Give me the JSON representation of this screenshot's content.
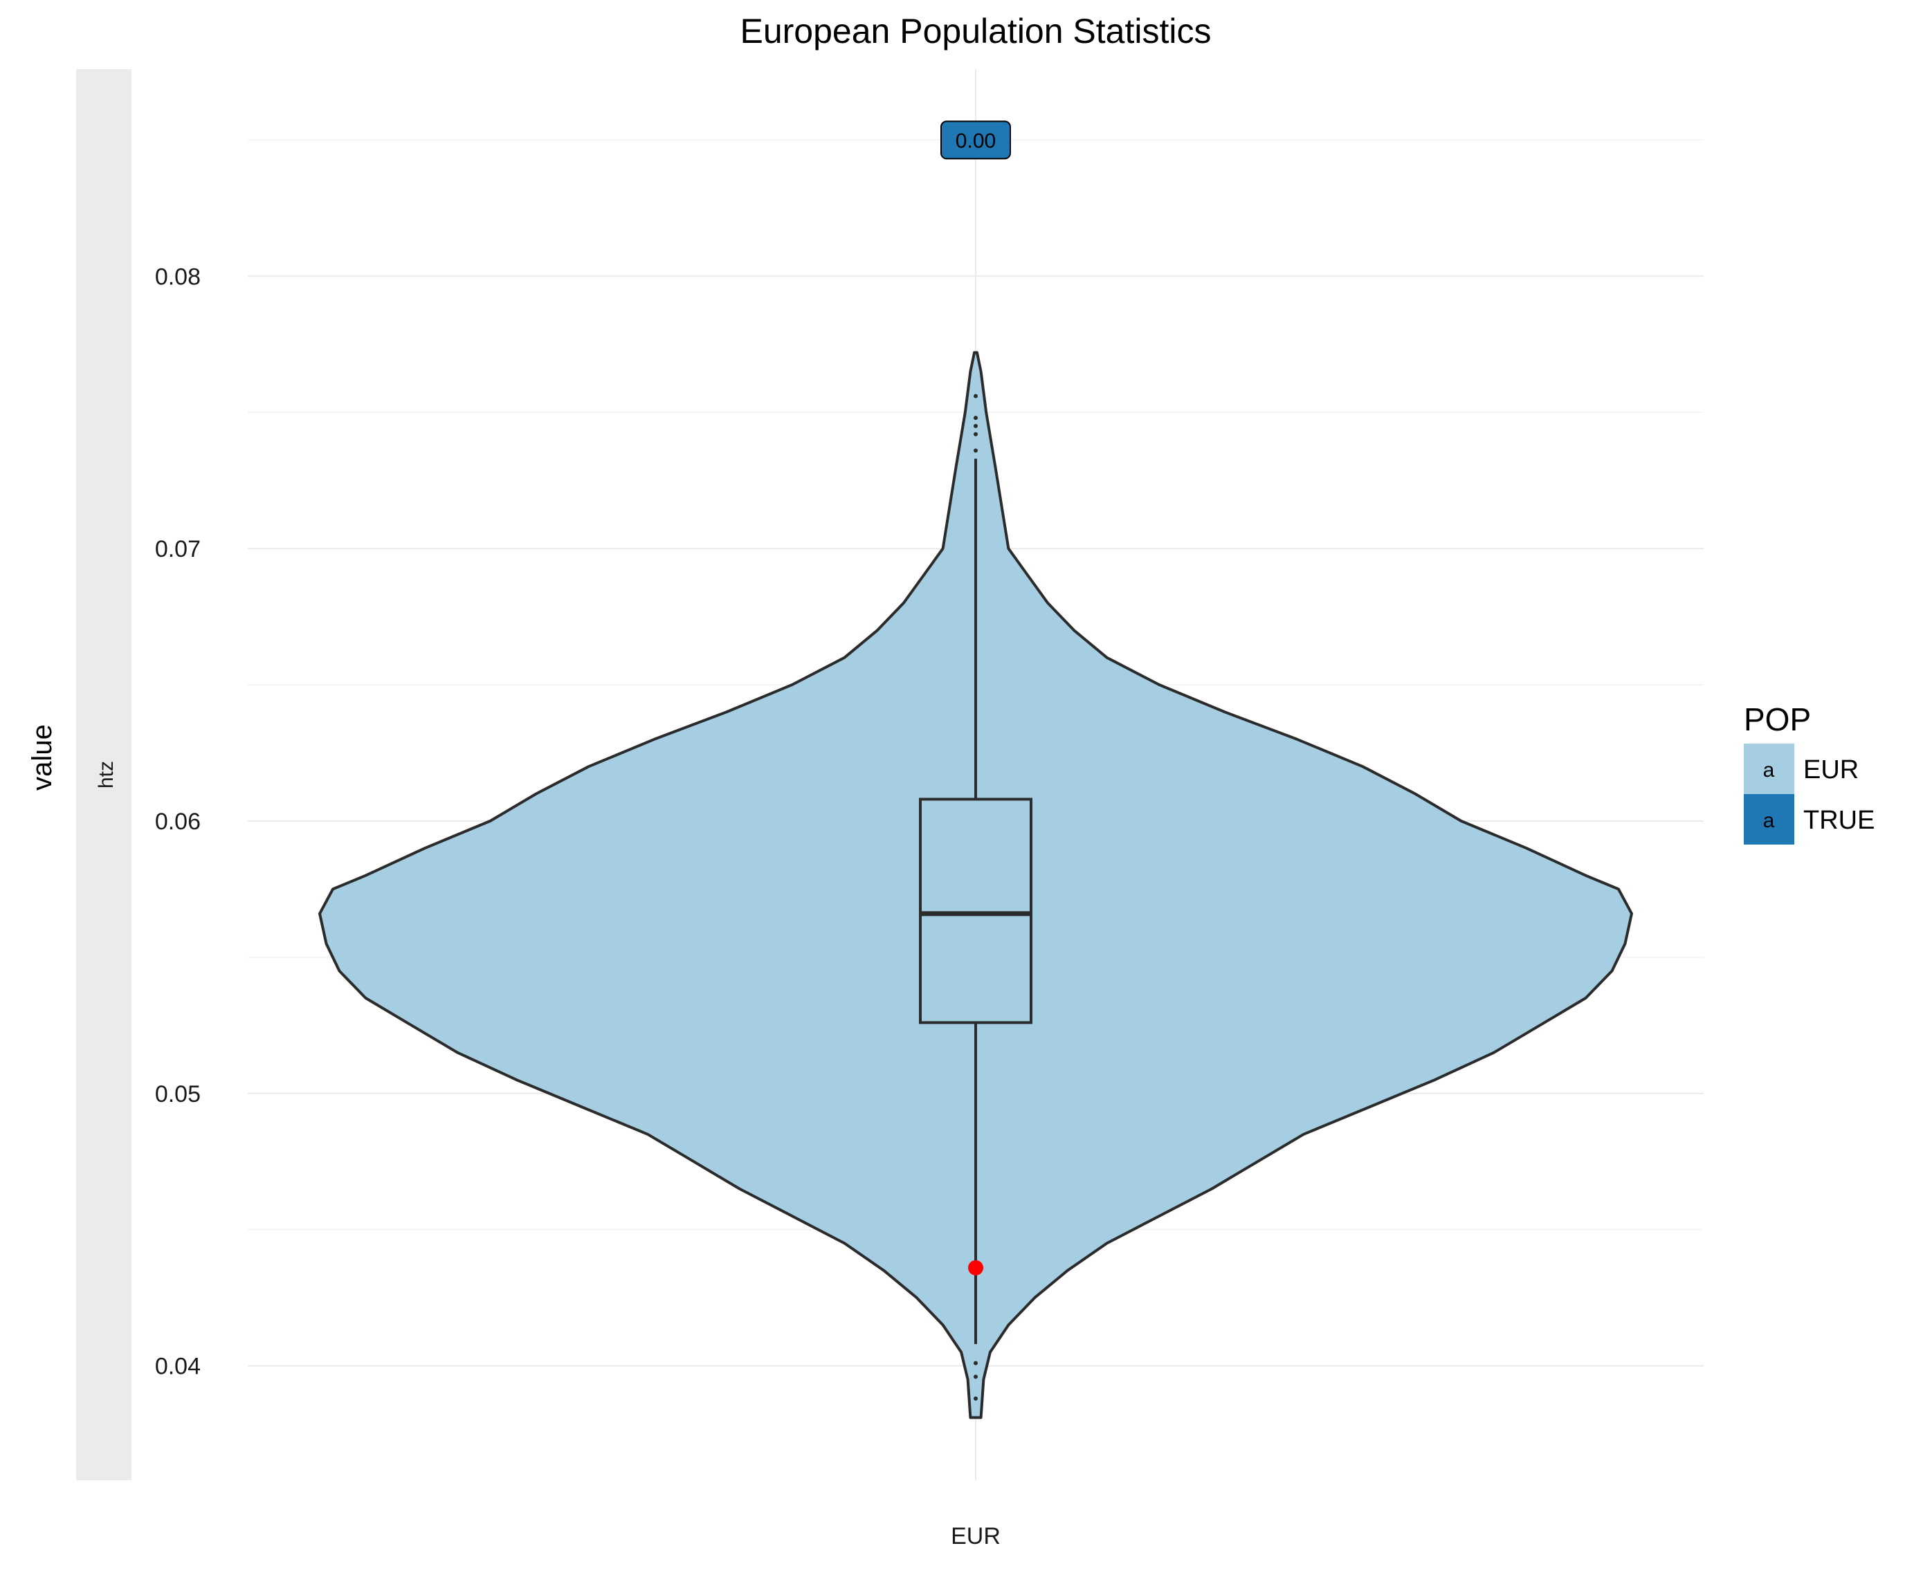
{
  "chart_data": {
    "type": "violin",
    "title": "European Population Statistics",
    "ylabel": "value",
    "facet_label": "htz",
    "categories": [
      "EUR"
    ],
    "ylim": [
      0.0358,
      0.0876
    ],
    "y_ticks": [
      0.04,
      0.05,
      0.06,
      0.07,
      0.08
    ],
    "y_tick_labels": [
      "0.04",
      "0.05",
      "0.06",
      "0.07",
      "0.08"
    ],
    "grid": true,
    "legend": {
      "title": "POP",
      "placement": "right",
      "key_glyph": "a",
      "entries": [
        {
          "label": "EUR",
          "color": "#a6cee3"
        },
        {
          "label": "TRUE",
          "color": "#1f78b4"
        }
      ]
    },
    "violin": {
      "category": "EUR",
      "fill": "#a6cee3",
      "outline": "#2b2b2b",
      "y_min": 0.0381,
      "y_max": 0.0772,
      "max_width_at": 0.0566,
      "profile": [
        [
          0.0381,
          0.008
        ],
        [
          0.0395,
          0.012
        ],
        [
          0.0405,
          0.022
        ],
        [
          0.0415,
          0.05
        ],
        [
          0.0425,
          0.09
        ],
        [
          0.0435,
          0.14
        ],
        [
          0.0445,
          0.2
        ],
        [
          0.0455,
          0.28
        ],
        [
          0.0465,
          0.36
        ],
        [
          0.0475,
          0.43
        ],
        [
          0.0485,
          0.5
        ],
        [
          0.0495,
          0.6
        ],
        [
          0.0505,
          0.7
        ],
        [
          0.0515,
          0.79
        ],
        [
          0.0525,
          0.86
        ],
        [
          0.0535,
          0.93
        ],
        [
          0.0545,
          0.97
        ],
        [
          0.0555,
          0.99
        ],
        [
          0.0566,
          1.0
        ],
        [
          0.0575,
          0.98
        ],
        [
          0.058,
          0.93
        ],
        [
          0.059,
          0.84
        ],
        [
          0.06,
          0.74
        ],
        [
          0.061,
          0.67
        ],
        [
          0.062,
          0.59
        ],
        [
          0.063,
          0.49
        ],
        [
          0.064,
          0.38
        ],
        [
          0.065,
          0.28
        ],
        [
          0.066,
          0.2
        ],
        [
          0.067,
          0.15
        ],
        [
          0.068,
          0.11
        ],
        [
          0.069,
          0.08
        ],
        [
          0.07,
          0.05
        ],
        [
          0.0715,
          0.04
        ],
        [
          0.073,
          0.03
        ],
        [
          0.075,
          0.016
        ],
        [
          0.0765,
          0.008
        ],
        [
          0.0772,
          0.002
        ]
      ]
    },
    "boxplot": {
      "category": "EUR",
      "whisker_low": 0.0408,
      "q1": 0.0526,
      "median": 0.0566,
      "q3": 0.0608,
      "whisker_high": 0.0733,
      "outliers": [
        0.0736,
        0.0742,
        0.0745,
        0.0748,
        0.0756,
        0.0401,
        0.0396,
        0.0388
      ]
    },
    "highlight_point": {
      "category": "EUR",
      "y": 0.0436,
      "color": "#ff0000"
    },
    "annotation": {
      "label": "0.00",
      "category": "EUR",
      "y": 0.085,
      "fill": "#1f78b4"
    },
    "colors": {
      "grid": "#ebebeb",
      "grid_minor": "#f5f5f5",
      "strip": "#ebebeb"
    }
  }
}
